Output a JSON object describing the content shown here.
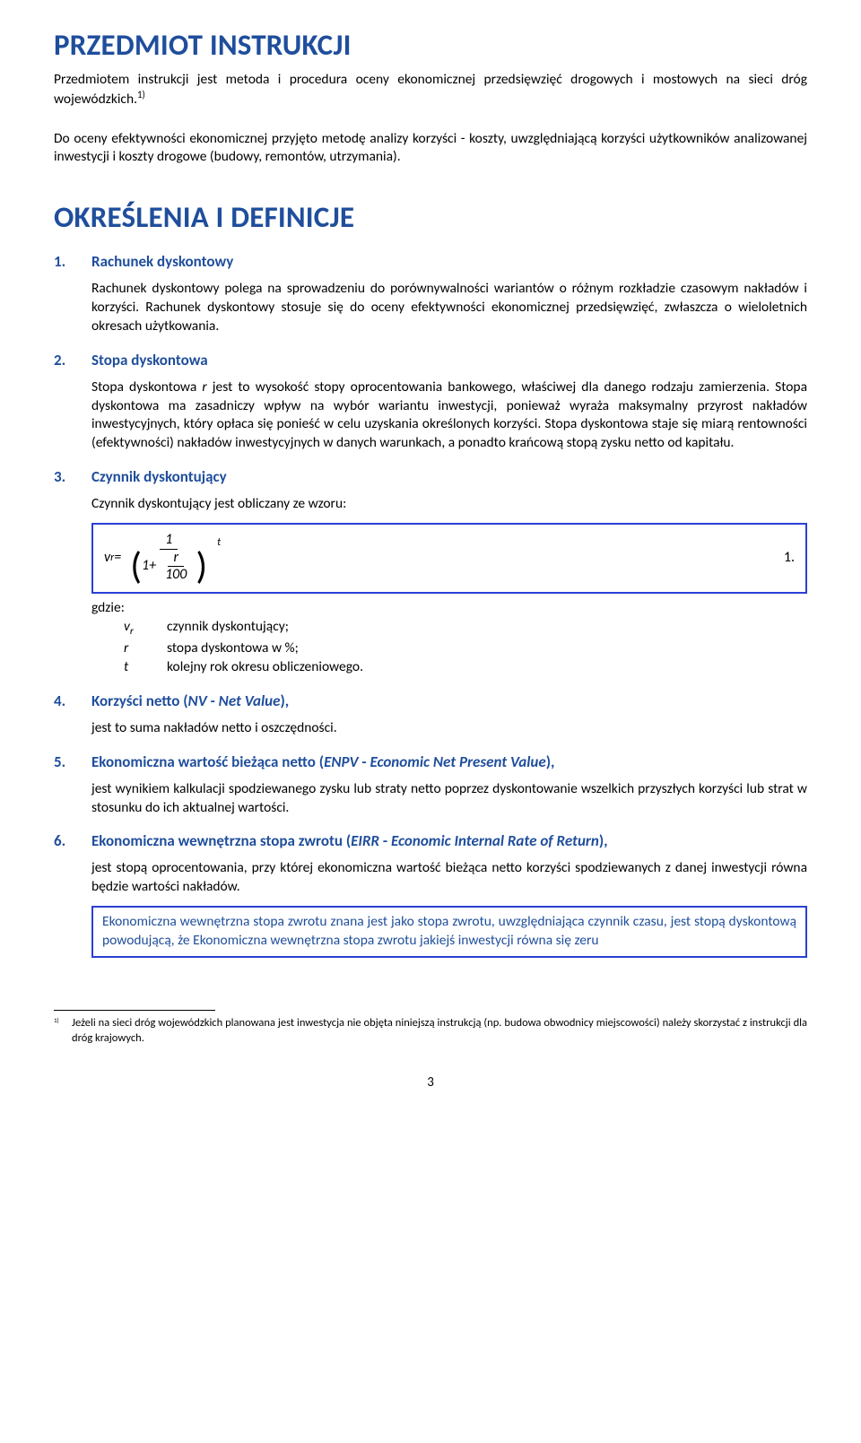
{
  "colors": {
    "heading": "#1f4e9c",
    "box_border": "#2a3fd4",
    "text": "#000000",
    "background": "#ffffff"
  },
  "fonts": {
    "family": "Calibri",
    "h1_size_pt": 25,
    "h2_size_pt": 25,
    "section_label_size_pt": 13,
    "body_size_pt": 11.5,
    "footnote_size_pt": 9.5
  },
  "h1": "PRZEDMIOT INSTRUKCJI",
  "intro1_pre": "Przedmiotem instrukcji jest metoda i procedura oceny ekonomicznej przedsięwzięć drogowych i mostowych na sieci dróg wojewódzkich.",
  "intro1_sup": "1)",
  "intro2": "Do oceny efektywności ekonomicznej przyjęto metodę analizy korzyści - koszty, uwzględniającą korzyści użytkowników analizowanej inwestycji i koszty drogowe (budowy, remontów, utrzymania).",
  "h2": "OKREŚLENIA I DEFINICJE",
  "sec1": {
    "num": "1.",
    "label": "Rachunek dyskontowy",
    "body": "Rachunek dyskontowy polega na sprowadzeniu do porównywalności wariantów o różnym rozkładzie czasowym nakładów i korzyści. Rachunek dyskontowy stosuje się do oceny efektywności ekonomicznej przedsięwzięć, zwłaszcza o wieloletnich okresach użytkowania."
  },
  "sec2": {
    "num": "2.",
    "label": "Stopa dyskontowa",
    "body_part1": "Stopa dyskontowa ",
    "body_italic1": "r",
    "body_part2": " jest to wysokość stopy oprocentowania bankowego, właściwej dla danego rodzaju zamierzenia. Stopa dyskontowa ma zasadniczy wpływ na wybór wariantu inwestycji, ponieważ wyraża maksymalny przyrost nakładów inwestycyjnych, który opłaca się ponieść w celu uzyskania określonych korzyści. Stopa dyskontowa staje się miarą rentowności (efektywności) nakładów inwestycyjnych w danych warunkach, a ponadto krańcową stopą zysku netto od kapitału."
  },
  "sec3": {
    "num": "3.",
    "label": "Czynnik dyskontujący",
    "lead": "Czynnik dyskontujący jest obliczany ze wzoru:",
    "formula": {
      "lhs_v": "v",
      "lhs_sub": "r",
      "eq": " = ",
      "num_top": "1",
      "denom_prefix": "1+",
      "denom_frac_top": "r",
      "denom_frac_bot": "100",
      "exp": "t",
      "eqnum": "1."
    },
    "gdzie": "gdzie:",
    "defs": [
      {
        "sym_html": "v<sub>r</sub>",
        "txt": "czynnik dyskontujący;"
      },
      {
        "sym_html": "r",
        "txt": "stopa dyskontowa w %;"
      },
      {
        "sym_html": "t",
        "txt": "kolejny rok okresu obliczeniowego."
      }
    ]
  },
  "sec4": {
    "num": "4.",
    "label_pre": "Korzyści netto (",
    "label_abbr": "NV",
    "label_mid": " - ",
    "label_it": "Net Value",
    "label_post": "),",
    "body": "jest to suma nakładów netto i oszczędności."
  },
  "sec5": {
    "num": "5.",
    "label_pre": "Ekonomiczna wartość bieżąca netto (",
    "label_abbr": "ENPV",
    "label_mid": " - ",
    "label_it": "Economic Net Present Value",
    "label_post": "),",
    "body": "jest wynikiem kalkulacji spodziewanego zysku lub straty netto poprzez dyskontowanie wszelkich przyszłych korzyści lub strat w stosunku do ich aktualnej wartości."
  },
  "sec6": {
    "num": "6.",
    "label_pre": "Ekonomiczna wewnętrzna stopa zwrotu (",
    "label_abbr": "EIRR",
    "label_mid": " - ",
    "label_it": "Economic Internal Rate of Return",
    "label_post": "),",
    "body": "jest stopą oprocentowania, przy której ekonomiczna wartość bieżąca netto korzyści spodziewanych z danej inwestycji równa będzie wartości nakładów.",
    "note": "Ekonomiczna wewnętrzna stopa zwrotu znana jest jako stopa zwrotu, uwzględniająca czynnik czasu, jest stopą dyskontową powodującą, że Ekonomiczna wewnętrzna stopa zwrotu jakiejś inwestycji równa się zeru"
  },
  "footnote": {
    "num": "1)",
    "text": "Jeżeli na sieci dróg wojewódzkich planowana jest inwestycja nie objęta niniejszą instrukcją (np. budowa obwodnicy miejscowości) należy skorzystać z instrukcji dla dróg krajowych."
  },
  "page_number": "3"
}
